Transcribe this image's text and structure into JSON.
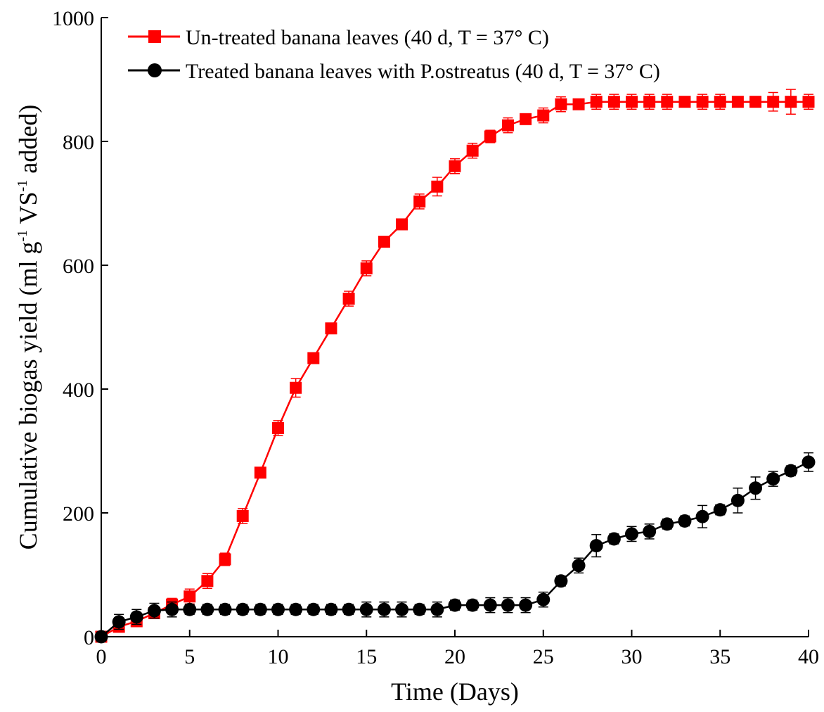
{
  "chart_data": {
    "type": "line",
    "xlabel": "Time (Days)",
    "ylabel": {
      "prefix": "Cumulative biogas yield (ml g",
      "sup1": "-1",
      "middle": " VS",
      "sup2": "-1",
      "suffix": " added)"
    },
    "xlim": [
      0,
      40
    ],
    "ylim": [
      0,
      1000
    ],
    "xticks": [
      0,
      5,
      10,
      15,
      20,
      25,
      30,
      35,
      40
    ],
    "yticks": [
      0,
      200,
      400,
      600,
      800,
      1000
    ],
    "grid": false,
    "legend_position": "top-left",
    "x": [
      0,
      1,
      2,
      3,
      4,
      5,
      6,
      7,
      8,
      9,
      10,
      11,
      12,
      13,
      14,
      15,
      16,
      17,
      18,
      19,
      20,
      21,
      22,
      23,
      24,
      25,
      26,
      27,
      28,
      29,
      30,
      31,
      32,
      33,
      34,
      35,
      36,
      37,
      38,
      39,
      40
    ],
    "series": [
      {
        "name": "Un-treated banana leaves (40 d, T = 37° C)",
        "color": "#ff0000",
        "marker": "square",
        "values": [
          0,
          16,
          25,
          38,
          52,
          65,
          90,
          125,
          195,
          265,
          337,
          402,
          450,
          498,
          546,
          595,
          638,
          666,
          703,
          727,
          760,
          785,
          808,
          826,
          836,
          842,
          860,
          860,
          864,
          864,
          864,
          864,
          864,
          864,
          864,
          864,
          864,
          864,
          864,
          864,
          864
        ],
        "errors": [
          3,
          6,
          6,
          8,
          10,
          12,
          12,
          10,
          12,
          8,
          12,
          15,
          8,
          8,
          12,
          12,
          8,
          8,
          12,
          15,
          12,
          12,
          10,
          12,
          8,
          12,
          12,
          8,
          12,
          12,
          12,
          12,
          12,
          8,
          12,
          12,
          8,
          8,
          15,
          20,
          12
        ]
      },
      {
        "name": "Treated banana leaves with P.ostreatus (40 d, T = 37° C)",
        "color": "#000000",
        "marker": "circle",
        "values": [
          0,
          24,
          32,
          42,
          44,
          44,
          44,
          44,
          44,
          44,
          44,
          44,
          44,
          44,
          44,
          44,
          44,
          44,
          44,
          44,
          51,
          51,
          51,
          51,
          51,
          60,
          90,
          115,
          147,
          158,
          166,
          170,
          182,
          187,
          194,
          205,
          220,
          240,
          255,
          268,
          282
        ],
        "errors": [
          3,
          12,
          12,
          12,
          12,
          8,
          8,
          8,
          8,
          8,
          8,
          8,
          8,
          8,
          8,
          12,
          12,
          12,
          8,
          12,
          8,
          8,
          12,
          12,
          12,
          12,
          8,
          12,
          18,
          8,
          12,
          12,
          8,
          8,
          18,
          8,
          20,
          18,
          12,
          8,
          15
        ]
      }
    ]
  }
}
